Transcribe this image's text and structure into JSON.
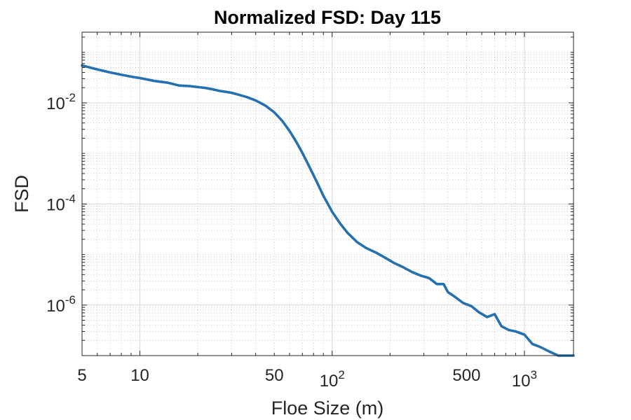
{
  "chart_data": {
    "type": "line",
    "title": "Normalized FSD: Day 115",
    "xlabel": "Floe Size (m)",
    "ylabel": "FSD",
    "x_scale": "log",
    "y_scale": "log",
    "xlim": [
      5,
      1800
    ],
    "ylim": [
      1e-07,
      0.25
    ],
    "grid": "major and minor (log)",
    "colors": {
      "line": "#2470b0",
      "grid_major": "#d9d9d9",
      "grid_minor": "#c8c8c8",
      "axes": "#262626"
    },
    "x_ticks": [
      {
        "value": 5,
        "base": "5",
        "exp": ""
      },
      {
        "value": 10,
        "base": "10",
        "exp": ""
      },
      {
        "value": 50,
        "base": "50",
        "exp": ""
      },
      {
        "value": 100,
        "base": "10",
        "exp": "2"
      },
      {
        "value": 500,
        "base": "500",
        "exp": ""
      },
      {
        "value": 1000,
        "base": "10",
        "exp": "3"
      }
    ],
    "y_ticks": [
      {
        "value": 0.01,
        "base": "10",
        "exp": "-2"
      },
      {
        "value": 0.0001,
        "base": "10",
        "exp": "-4"
      },
      {
        "value": 1e-06,
        "base": "10",
        "exp": "-6"
      }
    ],
    "series": [
      {
        "x": [
          5,
          6,
          7,
          8,
          9,
          10,
          12,
          14,
          16,
          18,
          20,
          22,
          24,
          26,
          28,
          30,
          33,
          36,
          40,
          45,
          50,
          55,
          60,
          65,
          70,
          75,
          80,
          85,
          90,
          95,
          100,
          110,
          120,
          135,
          150,
          170,
          190,
          210,
          230,
          260,
          290,
          320,
          350,
          380,
          400,
          430,
          480,
          530,
          580,
          640,
          700,
          760,
          830,
          900,
          1000,
          1100,
          1200,
          1350,
          1500,
          1650,
          1800
        ],
        "values": [
          0.055,
          0.046,
          0.04,
          0.036,
          0.033,
          0.031,
          0.027,
          0.025,
          0.022,
          0.0215,
          0.0205,
          0.0197,
          0.0185,
          0.0172,
          0.0165,
          0.0158,
          0.0143,
          0.013,
          0.0112,
          0.0088,
          0.0065,
          0.0044,
          0.0028,
          0.0017,
          0.00102,
          0.00061,
          0.00037,
          0.00023,
          0.000145,
          0.0001,
          7e-05,
          4.1e-05,
          2.7e-05,
          1.75e-05,
          1.35e-05,
          1.08e-05,
          8.5e-06,
          6.8e-06,
          5.8e-06,
          4.5e-06,
          3.8e-06,
          3.4e-06,
          2.6e-06,
          2.6e-06,
          1.8e-06,
          1.5e-06,
          1.1e-06,
          9.5e-07,
          7.2e-07,
          5.8e-07,
          6.6e-07,
          3.8e-07,
          3.2e-07,
          3e-07,
          2.6e-07,
          1.7e-07,
          1.5e-07,
          1.2e-07,
          1e-07,
          1e-07,
          1e-07
        ]
      }
    ]
  }
}
